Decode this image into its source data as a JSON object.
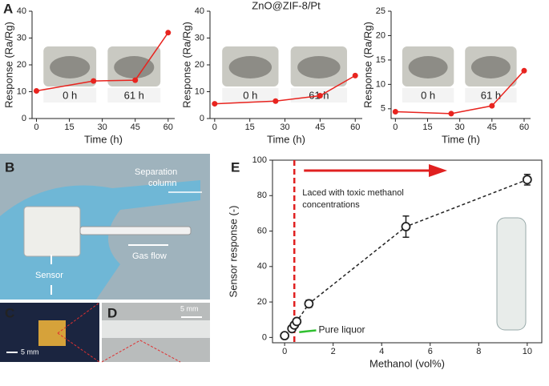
{
  "labels": {
    "a": "A",
    "b": "B",
    "c": "C",
    "d": "D",
    "e": "E",
    "separation_column": [
      "Separation",
      "column"
    ],
    "gas_flow": "Gas flow",
    "sensor": "Sensor",
    "scale_c": "5 mm",
    "scale_d": "5 mm"
  },
  "chart_data": [
    {
      "type": "line",
      "xlabel": "Time (h)",
      "ylabel": "Response (Ra/Rg)",
      "x": [
        0,
        26,
        45,
        60
      ],
      "series": [
        {
          "color": "#e8241f",
          "values": [
            10.3,
            14,
            14.3,
            32
          ]
        }
      ],
      "xlim": [
        -2,
        63
      ],
      "ylim": [
        0,
        40
      ],
      "xticks": [
        0,
        15,
        30,
        45,
        60
      ],
      "yticks": [
        0,
        10,
        20,
        30,
        40
      ],
      "annotations": [
        "0 h",
        "61 h"
      ]
    },
    {
      "type": "line",
      "title": "ZnO@ZIF-8/Pt",
      "xlabel": "Time (h)",
      "ylabel": "Response (Ra/Rg)",
      "x": [
        0,
        26,
        45,
        60
      ],
      "series": [
        {
          "color": "#e8241f",
          "values": [
            5.5,
            6.5,
            8.5,
            16
          ]
        }
      ],
      "xlim": [
        -2,
        63
      ],
      "ylim": [
        0,
        40
      ],
      "xticks": [
        0,
        15,
        30,
        45,
        60
      ],
      "yticks": [
        0,
        10,
        20,
        30,
        40
      ],
      "annotations": [
        "0 h",
        "61 h"
      ]
    },
    {
      "type": "line",
      "xlabel": "Time (h)",
      "ylabel": "Response (Ra/Rg)",
      "x": [
        0,
        26,
        45,
        60
      ],
      "series": [
        {
          "color": "#e8241f",
          "values": [
            4.4,
            4.0,
            5.6,
            12.8
          ]
        }
      ],
      "xlim": [
        -2,
        63
      ],
      "ylim": [
        3,
        25
      ],
      "xticks": [
        0,
        15,
        30,
        45,
        60
      ],
      "yticks": [
        5,
        10,
        15,
        20,
        25
      ],
      "annotations": [
        "0 h",
        "61 h"
      ]
    },
    {
      "type": "scatter",
      "xlabel": "Methanol (vol%)",
      "ylabel": "Sensor response (-)",
      "x": [
        0,
        0.3,
        0.4,
        0.5,
        1,
        5,
        10
      ],
      "series": [
        {
          "color": "#222222",
          "values": [
            1,
            5,
            7,
            9,
            19,
            62.5,
            89
          ],
          "errors": [
            1,
            1,
            1,
            1,
            2,
            6,
            3
          ]
        }
      ],
      "xlim": [
        -0.5,
        10.6
      ],
      "ylim": [
        -3,
        100
      ],
      "xticks": [
        0,
        2,
        4,
        6,
        8,
        10
      ],
      "yticks": [
        0,
        20,
        40,
        60,
        80,
        100
      ],
      "threshold_x": 0.4,
      "annotations": [
        "Laced with toxic methanol",
        "concentrations",
        "Pure liquor"
      ]
    }
  ]
}
